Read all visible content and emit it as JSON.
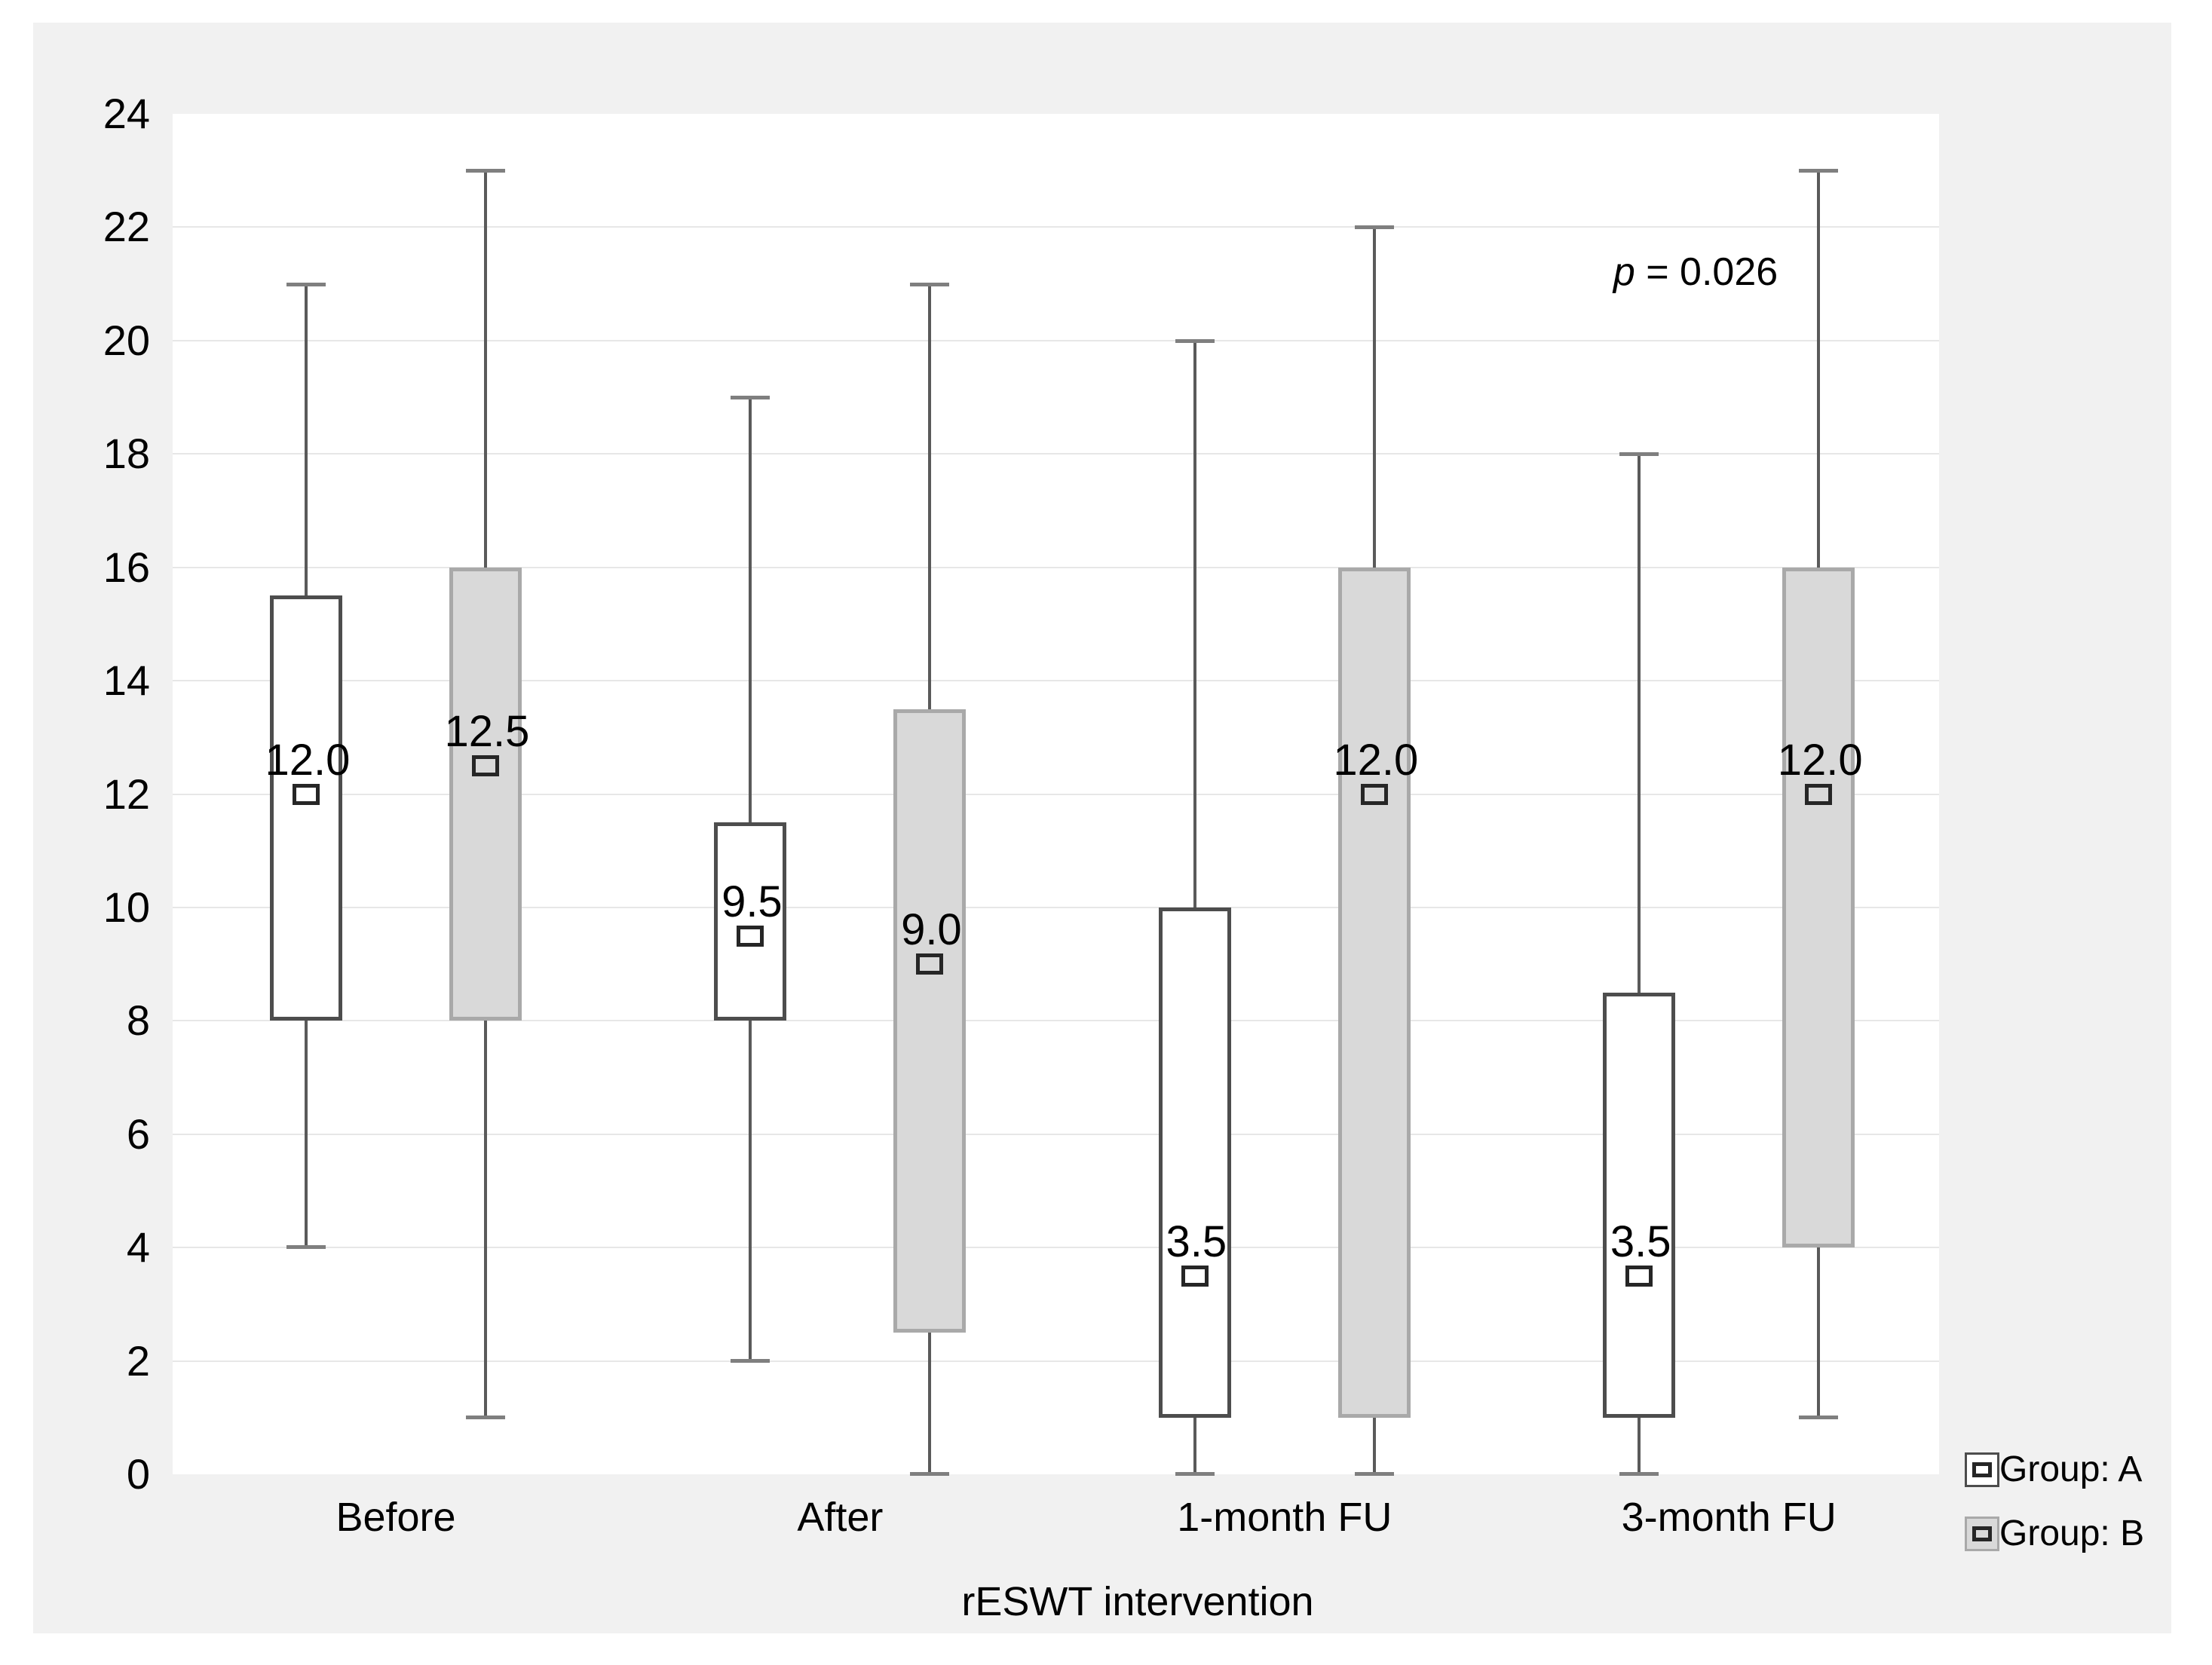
{
  "colors": {
    "page_bg": "#ffffff",
    "panel_bg": "#f1f1f1",
    "plot_bg": "#ffffff",
    "gridline": "#e7e7e7",
    "whisker": "#5a5a5a",
    "whisker_cap": "#7f7f7f",
    "marker_border": "#262626",
    "text": "#000000",
    "series_a_fill": "#ffffff",
    "series_a_border": "#4d4d4d",
    "series_b_fill": "#d9d9d9",
    "series_b_border": "#a9a9a9"
  },
  "chart_data": {
    "type": "box",
    "title": "",
    "xlabel": "rESWT intervention",
    "ylabel": "",
    "ylim": [
      0,
      24
    ],
    "ytick_step": 2,
    "yticks": [
      "0",
      "2",
      "4",
      "6",
      "8",
      "10",
      "12",
      "14",
      "16",
      "18",
      "20",
      "22",
      "24"
    ],
    "grid": "horizontal",
    "categories": [
      "Before",
      "After",
      "1-month FU",
      "3-month FU"
    ],
    "annotation": {
      "italic_part": "p",
      "text_part": " = 0.026"
    },
    "legend_position": "bottom-right",
    "series": [
      {
        "name": "Group: A",
        "boxes": [
          {
            "category": "Before",
            "whisker_low": 4,
            "q1": 8,
            "median": 12.0,
            "q3": 15.5,
            "whisker_high": 21,
            "median_label": "12.0"
          },
          {
            "category": "After",
            "whisker_low": 2,
            "q1": 8,
            "median": 9.5,
            "q3": 11.5,
            "whisker_high": 19,
            "median_label": "9.5"
          },
          {
            "category": "1-month FU",
            "whisker_low": 0,
            "q1": 1,
            "median": 3.5,
            "q3": 10,
            "whisker_high": 20,
            "median_label": "3.5"
          },
          {
            "category": "3-month FU",
            "whisker_low": 0,
            "q1": 1,
            "median": 3.5,
            "q3": 8.5,
            "whisker_high": 18,
            "median_label": "3.5"
          }
        ]
      },
      {
        "name": "Group: B",
        "boxes": [
          {
            "category": "Before",
            "whisker_low": 1,
            "q1": 8,
            "median": 12.5,
            "q3": 16,
            "whisker_high": 23,
            "median_label": "12.5"
          },
          {
            "category": "After",
            "whisker_low": 0,
            "q1": 2.5,
            "median": 9.0,
            "q3": 13.5,
            "whisker_high": 21,
            "median_label": "9.0"
          },
          {
            "category": "1-month FU",
            "whisker_low": 0,
            "q1": 1,
            "median": 12.0,
            "q3": 16,
            "whisker_high": 22,
            "median_label": "12.0"
          },
          {
            "category": "3-month FU",
            "whisker_low": 1,
            "q1": 4,
            "median": 12.0,
            "q3": 16,
            "whisker_high": 23,
            "median_label": "12.0"
          }
        ]
      }
    ]
  }
}
